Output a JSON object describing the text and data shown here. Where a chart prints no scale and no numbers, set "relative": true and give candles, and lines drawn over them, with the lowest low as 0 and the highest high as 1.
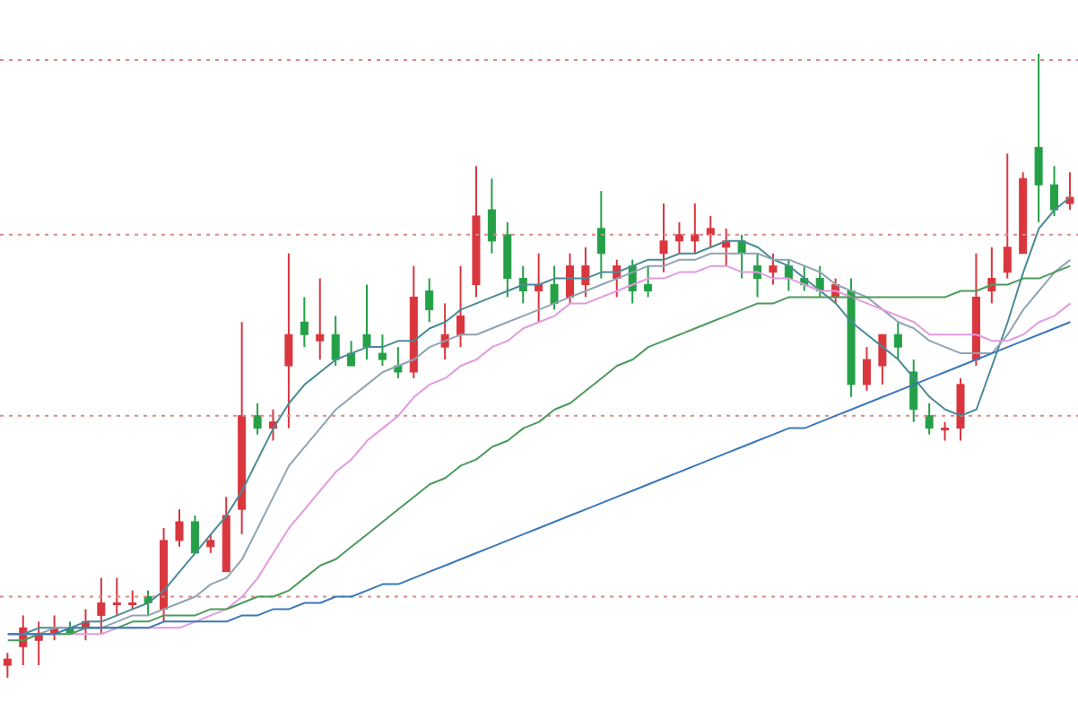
{
  "chart_data": {
    "type": "candlestick",
    "relative": true,
    "ref_lines": [
      {
        "axis": "y",
        "value": 0.99,
        "color": "#d88a8a",
        "line_style": "dotted"
      },
      {
        "axis": "y",
        "value": 0.71,
        "color": "#d88a8a",
        "line_style": "dotted"
      },
      {
        "axis": "y",
        "value": 0.42,
        "color": "#d88a8a",
        "line_style": "dotted"
      },
      {
        "axis": "y",
        "value": 0.13,
        "color": "#d88a8a",
        "line_style": "dotted"
      }
    ],
    "categories": [
      null,
      null,
      null,
      null,
      null,
      null,
      null,
      null,
      null,
      null,
      null,
      null,
      null,
      null,
      null,
      null,
      null,
      null,
      null,
      null,
      null,
      null,
      null,
      null,
      null,
      null,
      null,
      null,
      null,
      null,
      null,
      null,
      null,
      null,
      null,
      null,
      null,
      null,
      null,
      null,
      null,
      null,
      null,
      null,
      null,
      null,
      null,
      null,
      null,
      null,
      null,
      null,
      null,
      null,
      null,
      null,
      null,
      null,
      null,
      null,
      null,
      null,
      null,
      null,
      null,
      null,
      null,
      null,
      null
    ],
    "ohlc": [
      [
        0.02,
        0.04,
        0,
        0.03
      ],
      [
        0.05,
        0.1,
        0.02,
        0.08
      ],
      [
        0.06,
        0.09,
        0.02,
        0.07
      ],
      [
        0.07,
        0.1,
        0.06,
        0.08
      ],
      [
        0.08,
        0.09,
        0.07,
        0.07
      ],
      [
        0.08,
        0.11,
        0.06,
        0.09
      ],
      [
        0.1,
        0.16,
        0.07,
        0.12
      ],
      [
        0.12,
        0.16,
        0.1,
        0.12
      ],
      [
        0.12,
        0.14,
        0.11,
        0.12
      ],
      [
        0.13,
        0.14,
        0.1,
        0.12
      ],
      [
        0.11,
        0.24,
        0.09,
        0.22
      ],
      [
        0.22,
        0.27,
        0.21,
        0.25
      ],
      [
        0.25,
        0.26,
        0.2,
        0.2
      ],
      [
        0.21,
        0.23,
        0.2,
        0.22
      ],
      [
        0.17,
        0.29,
        0.17,
        0.26
      ],
      [
        0.27,
        0.57,
        0.23,
        0.42
      ],
      [
        0.42,
        0.44,
        0.39,
        0.4
      ],
      [
        0.4,
        0.43,
        0.38,
        0.41
      ],
      [
        0.5,
        0.68,
        0.4,
        0.55
      ],
      [
        0.57,
        0.61,
        0.53,
        0.55
      ],
      [
        0.54,
        0.64,
        0.51,
        0.55
      ],
      [
        0.55,
        0.58,
        0.5,
        0.51
      ],
      [
        0.52,
        0.54,
        0.5,
        0.5
      ],
      [
        0.55,
        0.63,
        0.51,
        0.53
      ],
      [
        0.52,
        0.55,
        0.5,
        0.51
      ],
      [
        0.5,
        0.53,
        0.48,
        0.49
      ],
      [
        0.49,
        0.66,
        0.48,
        0.61
      ],
      [
        0.62,
        0.64,
        0.57,
        0.59
      ],
      [
        0.53,
        0.6,
        0.51,
        0.55
      ],
      [
        0.55,
        0.66,
        0.53,
        0.58
      ],
      [
        0.63,
        0.82,
        0.61,
        0.74
      ],
      [
        0.75,
        0.8,
        0.68,
        0.7
      ],
      [
        0.71,
        0.73,
        0.61,
        0.64
      ],
      [
        0.64,
        0.66,
        0.6,
        0.62
      ],
      [
        0.62,
        0.68,
        0.57,
        0.63
      ],
      [
        0.63,
        0.66,
        0.59,
        0.6
      ],
      [
        0.61,
        0.68,
        0.6,
        0.66
      ],
      [
        0.63,
        0.69,
        0.61,
        0.66
      ],
      [
        0.72,
        0.78,
        0.64,
        0.68
      ],
      [
        0.64,
        0.67,
        0.61,
        0.66
      ],
      [
        0.66,
        0.67,
        0.6,
        0.62
      ],
      [
        0.63,
        0.66,
        0.61,
        0.62
      ],
      [
        0.68,
        0.76,
        0.65,
        0.7
      ],
      [
        0.7,
        0.73,
        0.68,
        0.71
      ],
      [
        0.7,
        0.76,
        0.68,
        0.71
      ],
      [
        0.71,
        0.74,
        0.69,
        0.72
      ],
      [
        0.69,
        0.72,
        0.66,
        0.7
      ],
      [
        0.7,
        0.71,
        0.64,
        0.68
      ],
      [
        0.66,
        0.68,
        0.61,
        0.64
      ],
      [
        0.65,
        0.68,
        0.63,
        0.66
      ],
      [
        0.66,
        0.67,
        0.62,
        0.64
      ],
      [
        0.64,
        0.66,
        0.62,
        0.63
      ],
      [
        0.64,
        0.66,
        0.61,
        0.62
      ],
      [
        0.61,
        0.64,
        0.6,
        0.63
      ],
      [
        0.62,
        0.64,
        0.45,
        0.47
      ],
      [
        0.47,
        0.53,
        0.46,
        0.51
      ],
      [
        0.5,
        0.55,
        0.47,
        0.55
      ],
      [
        0.55,
        0.57,
        0.51,
        0.53
      ],
      [
        0.49,
        0.51,
        0.41,
        0.43
      ],
      [
        0.42,
        0.44,
        0.39,
        0.4
      ],
      [
        0.4,
        0.41,
        0.38,
        0.4
      ],
      [
        0.4,
        0.48,
        0.38,
        0.47
      ],
      [
        0.51,
        0.68,
        0.5,
        0.61
      ],
      [
        0.62,
        0.69,
        0.6,
        0.64
      ],
      [
        0.65,
        0.84,
        0.64,
        0.69
      ],
      [
        0.68,
        0.81,
        0.68,
        0.8
      ],
      [
        0.85,
        1,
        0.73,
        0.79
      ],
      [
        0.79,
        0.82,
        0.74,
        0.75
      ],
      [
        0.76,
        0.81,
        0.75,
        0.77
      ]
    ],
    "series": [
      {
        "type": "line",
        "color": "#4a8a96",
        "values": [
          0.07,
          0.07,
          0.08,
          0.08,
          0.08,
          0.09,
          0.09,
          0.1,
          0.11,
          0.12,
          0.14,
          0.17,
          0.2,
          0.23,
          0.26,
          0.3,
          0.35,
          0.4,
          0.44,
          0.47,
          0.49,
          0.51,
          0.52,
          0.53,
          0.53,
          0.54,
          0.54,
          0.56,
          0.57,
          0.59,
          0.6,
          0.61,
          0.62,
          0.63,
          0.63,
          0.64,
          0.64,
          0.64,
          0.65,
          0.65,
          0.66,
          0.67,
          0.67,
          0.68,
          0.68,
          0.69,
          0.7,
          0.7,
          0.69,
          0.67,
          0.66,
          0.64,
          0.62,
          0.6,
          0.57,
          0.55,
          0.53,
          0.51,
          0.48,
          0.45,
          0.43,
          0.42,
          0.43,
          0.5,
          0.57,
          0.65,
          0.72,
          0.75,
          0.77
        ]
      },
      {
        "type": "line",
        "color": "#8fa3b3",
        "values": [
          0.07,
          0.07,
          0.07,
          0.08,
          0.08,
          0.08,
          0.08,
          0.09,
          0.1,
          0.1,
          0.11,
          0.12,
          0.13,
          0.15,
          0.16,
          0.19,
          0.24,
          0.29,
          0.34,
          0.37,
          0.4,
          0.43,
          0.45,
          0.47,
          0.49,
          0.5,
          0.51,
          0.53,
          0.54,
          0.55,
          0.55,
          0.56,
          0.57,
          0.58,
          0.59,
          0.6,
          0.61,
          0.62,
          0.63,
          0.64,
          0.65,
          0.66,
          0.66,
          0.67,
          0.67,
          0.68,
          0.68,
          0.68,
          0.68,
          0.67,
          0.67,
          0.66,
          0.65,
          0.63,
          0.62,
          0.61,
          0.59,
          0.57,
          0.56,
          0.54,
          0.53,
          0.52,
          0.52,
          0.52,
          0.55,
          0.59,
          0.62,
          0.65,
          0.67
        ]
      },
      {
        "type": "line",
        "color": "#e29ae0",
        "values": [
          null,
          0.07,
          0.07,
          0.07,
          0.07,
          0.07,
          0.07,
          0.08,
          0.08,
          0.08,
          0.08,
          0.08,
          0.09,
          0.1,
          0.11,
          0.13,
          0.16,
          0.2,
          0.24,
          0.27,
          0.3,
          0.33,
          0.35,
          0.38,
          0.4,
          0.42,
          0.45,
          0.47,
          0.48,
          0.5,
          0.51,
          0.53,
          0.54,
          0.56,
          0.57,
          0.58,
          0.6,
          0.6,
          0.61,
          0.62,
          0.63,
          0.64,
          0.64,
          0.65,
          0.65,
          0.66,
          0.66,
          0.65,
          0.65,
          0.64,
          0.64,
          0.63,
          0.62,
          0.62,
          0.61,
          0.6,
          0.59,
          0.58,
          0.57,
          0.55,
          0.55,
          0.55,
          0.55,
          0.54,
          0.54,
          0.55,
          0.57,
          0.58,
          0.6
        ]
      },
      {
        "type": "line",
        "color": "#4c9a5c",
        "values": [
          0.06,
          0.06,
          0.07,
          0.07,
          0.07,
          0.08,
          0.08,
          0.08,
          0.09,
          0.09,
          0.1,
          0.1,
          0.1,
          0.11,
          0.11,
          0.12,
          0.13,
          0.13,
          0.14,
          0.16,
          0.18,
          0.19,
          0.21,
          0.23,
          0.25,
          0.27,
          0.29,
          0.31,
          0.32,
          0.34,
          0.35,
          0.37,
          0.38,
          0.4,
          0.41,
          0.43,
          0.44,
          0.46,
          0.48,
          0.5,
          0.51,
          0.53,
          0.54,
          0.55,
          0.56,
          0.57,
          0.58,
          0.59,
          0.6,
          0.6,
          0.61,
          0.61,
          0.61,
          0.61,
          0.61,
          0.61,
          0.61,
          0.61,
          0.61,
          0.61,
          0.61,
          0.62,
          0.62,
          0.63,
          0.63,
          0.64,
          0.64,
          0.65,
          0.66
        ]
      },
      {
        "type": "line",
        "color": "#3b78b8",
        "values": [
          0.07,
          0.07,
          0.07,
          0.07,
          0.08,
          0.08,
          0.08,
          0.08,
          0.08,
          0.08,
          0.09,
          0.09,
          0.09,
          0.09,
          0.09,
          0.1,
          0.1,
          0.11,
          0.11,
          0.12,
          0.12,
          0.13,
          0.13,
          0.14,
          0.15,
          0.15,
          0.16,
          0.17,
          0.18,
          0.19,
          0.2,
          0.21,
          0.22,
          0.23,
          0.24,
          0.25,
          0.26,
          0.27,
          0.28,
          0.29,
          0.3,
          0.31,
          0.32,
          0.33,
          0.34,
          0.35,
          0.36,
          0.37,
          0.38,
          0.39,
          0.4,
          0.4,
          0.41,
          0.42,
          0.43,
          0.44,
          0.45,
          0.46,
          0.47,
          0.48,
          0.49,
          0.5,
          0.51,
          0.52,
          0.53,
          0.54,
          0.55,
          0.56,
          0.57
        ]
      }
    ]
  }
}
